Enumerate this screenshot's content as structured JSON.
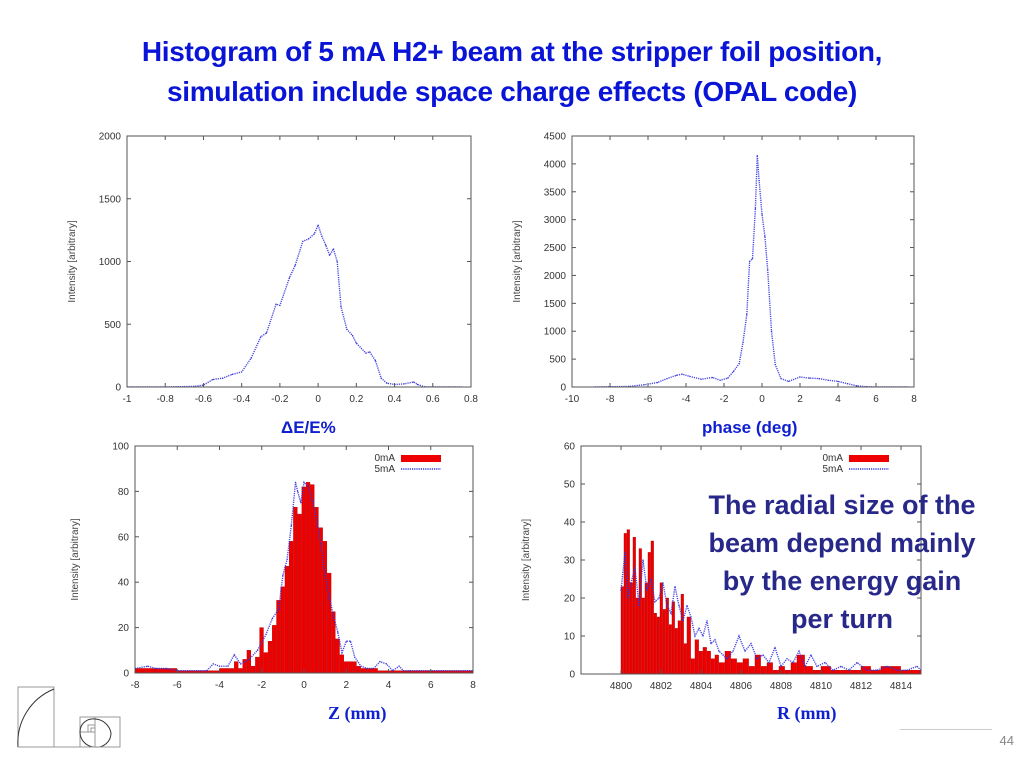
{
  "slide": {
    "title_lines": [
      "Histogram of  5 mA H2+ beam at the stripper foil position,",
      "simulation include space charge effects (OPAL code)"
    ],
    "note_lines": [
      "The radial size of the",
      "beam depend mainly",
      "by the energy gain",
      "per turn"
    ],
    "page_number": "44",
    "logo_icon": "golden-spiral-icon",
    "colors": {
      "title": "#0a14d6",
      "note": "#28288a",
      "series_0mA": "#ee0000",
      "series_5mA": "#3333dd"
    }
  },
  "captions": {
    "energy": "ΔE/E%",
    "phase": "phase (deg)",
    "z": "Z (mm)",
    "r": "R (mm)"
  },
  "chart_data": [
    {
      "id": "energy",
      "type": "line",
      "title": "",
      "xlabel": "ΔE/E%",
      "ylabel": "Intensity [arbitrary]",
      "xlim": [
        -1,
        0.8
      ],
      "ylim": [
        0,
        2000
      ],
      "xticks": [
        "-1",
        "-0.8",
        "-0.6",
        "-0.4",
        "-0.2",
        "0",
        "0.2",
        "0.4",
        "0.6",
        "0.8"
      ],
      "yticks": [
        "0",
        "500",
        "1000",
        "1500",
        "2000"
      ],
      "grid": false,
      "series": [
        {
          "name": "5mA",
          "style": "dotted",
          "x": [
            -1,
            -0.8,
            -0.65,
            -0.6,
            -0.55,
            -0.5,
            -0.45,
            -0.4,
            -0.35,
            -0.3,
            -0.27,
            -0.22,
            -0.2,
            -0.15,
            -0.12,
            -0.08,
            -0.05,
            -0.02,
            0,
            0.02,
            0.04,
            0.06,
            0.08,
            0.1,
            0.12,
            0.15,
            0.18,
            0.2,
            0.25,
            0.27,
            0.3,
            0.33,
            0.36,
            0.4,
            0.45,
            0.5,
            0.52,
            0.56,
            0.6,
            0.75
          ],
          "y": [
            0,
            0,
            5,
            15,
            60,
            70,
            100,
            120,
            230,
            400,
            430,
            660,
            650,
            870,
            970,
            1160,
            1180,
            1220,
            1290,
            1200,
            1130,
            1050,
            1100,
            1000,
            640,
            460,
            410,
            350,
            270,
            280,
            210,
            70,
            30,
            20,
            25,
            40,
            20,
            0,
            0,
            0
          ]
        }
      ]
    },
    {
      "id": "phase",
      "type": "line",
      "title": "",
      "xlabel": "phase (deg)",
      "ylabel": "Intensity [arbitrary]",
      "xlim": [
        -10,
        8
      ],
      "ylim": [
        0,
        4500
      ],
      "xticks": [
        "-10",
        "-8",
        "-6",
        "-4",
        "-2",
        "0",
        "2",
        "4",
        "6",
        "8"
      ],
      "yticks": [
        "0",
        "500",
        "1000",
        "1500",
        "2000",
        "2500",
        "3000",
        "3500",
        "4000",
        "4500"
      ],
      "grid": false,
      "series": [
        {
          "name": "5mA",
          "style": "dotted",
          "x": [
            -8.8,
            -7,
            -6.2,
            -5.5,
            -5,
            -4.5,
            -4.2,
            -3.8,
            -3.2,
            -2.6,
            -2.2,
            -1.8,
            -1.5,
            -1.2,
            -1,
            -0.8,
            -0.65,
            -0.5,
            -0.35,
            -0.25,
            -0.15,
            0,
            0.15,
            0.3,
            0.5,
            0.7,
            1,
            1.4,
            2,
            2.5,
            3,
            3.5,
            4,
            4.5,
            5,
            5.5,
            6,
            7.7
          ],
          "y": [
            0,
            10,
            40,
            80,
            150,
            210,
            230,
            190,
            140,
            170,
            120,
            160,
            280,
            420,
            800,
            1300,
            2250,
            2300,
            3200,
            4150,
            3700,
            3100,
            2700,
            2100,
            1000,
            400,
            150,
            100,
            180,
            160,
            150,
            120,
            100,
            60,
            20,
            5,
            0,
            0
          ]
        }
      ]
    },
    {
      "id": "z",
      "type": "bar",
      "title": "",
      "xlabel": "Z (mm)",
      "ylabel": "Intensity [arbitrary]",
      "xlim": [
        -8,
        8
      ],
      "ylim": [
        0,
        100
      ],
      "xticks": [
        "-8",
        "-6",
        "-4",
        "-2",
        "0",
        "2",
        "4",
        "6",
        "8"
      ],
      "yticks": [
        "0",
        "20",
        "40",
        "60",
        "80",
        "100"
      ],
      "grid": false,
      "legend": {
        "position": "top-right",
        "entries": [
          "0mA",
          "5mA"
        ]
      },
      "series": [
        {
          "name": "0mA",
          "style": "bars",
          "x": [
            -8,
            -7.5,
            -7,
            -6.5,
            -6,
            -5.5,
            -5,
            -4.5,
            -4,
            -3.5,
            -3.3,
            -3.1,
            -2.9,
            -2.7,
            -2.5,
            -2.3,
            -2.1,
            -1.9,
            -1.7,
            -1.5,
            -1.3,
            -1.1,
            -0.9,
            -0.7,
            -0.5,
            -0.3,
            -0.1,
            0.1,
            0.3,
            0.5,
            0.7,
            0.9,
            1.1,
            1.3,
            1.5,
            1.7,
            1.9,
            2.1,
            2.3,
            2.5,
            2.7,
            3,
            3.5,
            4,
            5,
            6,
            7,
            7.8
          ],
          "y": [
            2,
            2,
            2,
            2,
            1,
            1,
            1,
            1,
            2,
            2,
            5,
            2,
            6,
            10,
            3,
            7,
            20,
            9,
            14,
            21,
            32,
            38,
            47,
            58,
            73,
            70,
            82,
            84,
            83,
            73,
            64,
            58,
            44,
            27,
            15,
            8,
            5,
            5,
            5,
            3,
            2,
            2,
            1,
            1,
            1,
            1,
            1,
            1
          ]
        },
        {
          "name": "5mA",
          "style": "dotted",
          "x": [
            -8,
            -7.4,
            -7,
            -6.5,
            -6,
            -5.5,
            -5,
            -4.6,
            -4.3,
            -4,
            -3.6,
            -3.3,
            -3,
            -2.6,
            -2.2,
            -1.8,
            -1.5,
            -1.2,
            -1,
            -0.8,
            -0.6,
            -0.4,
            -0.3,
            -0.15,
            0,
            0.2,
            0.4,
            0.6,
            0.8,
            1,
            1.2,
            1.4,
            1.6,
            1.8,
            2,
            2.2,
            2.4,
            2.7,
            3,
            3.3,
            3.6,
            3.9,
            4.2,
            4.5,
            4.7,
            5,
            6,
            8
          ],
          "y": [
            2,
            3,
            2,
            2,
            1,
            1,
            1,
            1,
            4,
            3,
            3,
            8,
            4,
            6,
            10,
            17,
            24,
            28,
            43,
            50,
            65,
            84,
            80,
            75,
            84,
            82,
            76,
            67,
            57,
            43,
            33,
            25,
            18,
            9,
            14,
            14,
            7,
            3,
            2,
            2,
            5,
            4,
            1,
            3,
            1,
            1,
            1,
            1
          ]
        }
      ]
    },
    {
      "id": "r",
      "type": "bar",
      "title": "",
      "xlabel": "R (mm)",
      "ylabel": "Intensity [arbitrary]",
      "xlim": [
        4798,
        4815
      ],
      "ylim": [
        0,
        60
      ],
      "xticks": [
        "4800",
        "4802",
        "4804",
        "4806",
        "4808",
        "4810",
        "4812",
        "4814"
      ],
      "yticks": [
        "0",
        "10",
        "20",
        "30",
        "40",
        "50",
        "60"
      ],
      "grid": false,
      "legend": {
        "position": "top-right",
        "entries": [
          "0mA",
          "5mA"
        ]
      },
      "series": [
        {
          "name": "0mA",
          "style": "bars",
          "x": [
            4800,
            4800.15,
            4800.3,
            4800.45,
            4800.6,
            4800.75,
            4800.9,
            4801.05,
            4801.2,
            4801.35,
            4801.5,
            4801.65,
            4801.8,
            4801.95,
            4802.1,
            4802.25,
            4802.4,
            4802.55,
            4802.7,
            4802.85,
            4803,
            4803.15,
            4803.3,
            4803.5,
            4803.7,
            4803.9,
            4804.1,
            4804.3,
            4804.5,
            4804.7,
            4804.9,
            4805.2,
            4805.5,
            4805.8,
            4806.1,
            4806.4,
            4806.7,
            4807,
            4807.3,
            4807.6,
            4807.9,
            4808.2,
            4808.5,
            4808.8,
            4809.2,
            4809.6,
            4810,
            4810.5,
            4811,
            4811.5,
            4812,
            4812.5,
            4813,
            4813.5,
            4814,
            4814.5,
            4815
          ],
          "y": [
            23,
            37,
            38,
            24,
            36,
            20,
            33,
            20,
            24,
            32,
            35,
            16,
            15,
            24,
            17,
            20,
            13,
            19,
            12,
            14,
            21,
            8,
            15,
            4,
            9,
            6,
            7,
            6,
            4,
            5,
            3,
            6,
            4,
            3,
            4,
            2,
            5,
            2,
            3,
            1,
            2,
            1,
            3,
            5,
            2,
            1,
            2,
            1,
            1,
            1,
            2,
            1,
            2,
            2,
            1,
            1,
            1
          ]
        },
        {
          "name": "5mA",
          "style": "dotted",
          "x": [
            4800,
            4800.2,
            4800.35,
            4800.5,
            4800.7,
            4800.9,
            4801.1,
            4801.3,
            4801.5,
            4801.7,
            4801.9,
            4802.1,
            4802.3,
            4802.5,
            4802.7,
            4802.9,
            4803.1,
            4803.3,
            4803.5,
            4803.7,
            4803.9,
            4804.1,
            4804.3,
            4804.5,
            4804.7,
            4804.9,
            4805.1,
            4805.3,
            4805.6,
            4805.9,
            4806.2,
            4806.5,
            4806.8,
            4807.1,
            4807.4,
            4807.7,
            4808,
            4808.3,
            4808.6,
            4808.9,
            4809.2,
            4809.5,
            4809.8,
            4810.2,
            4810.6,
            4811,
            4811.4,
            4811.8,
            4812.3,
            4812.8,
            4813.3,
            4813.8,
            4814.3,
            4814.8,
            4815
          ],
          "y": [
            22,
            32,
            20,
            24,
            28,
            18,
            30,
            22,
            25,
            19,
            20,
            24,
            18,
            16,
            23,
            18,
            14,
            18,
            15,
            10,
            12,
            10,
            14,
            8,
            9,
            6,
            5,
            4,
            6,
            10,
            6,
            8,
            4,
            5,
            3,
            7,
            2,
            4,
            3,
            6,
            2,
            5,
            2,
            3,
            1,
            2,
            1,
            3,
            1,
            1,
            2,
            1,
            1,
            2,
            1
          ]
        }
      ]
    }
  ]
}
